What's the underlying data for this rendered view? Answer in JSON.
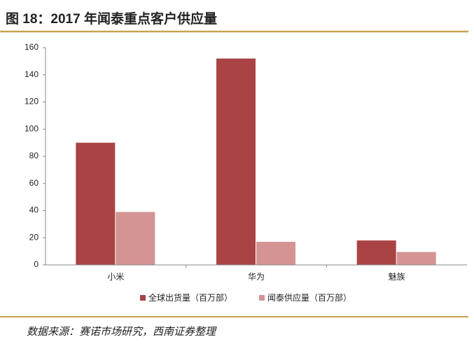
{
  "header": {
    "title": "图 18：2017 年闻泰重点客户供应量"
  },
  "chart_data": {
    "type": "bar",
    "categories": [
      "小米",
      "华为",
      "魅族"
    ],
    "series": [
      {
        "name": "全球出货量（百万部）",
        "color": "#aa4444",
        "values": [
          90,
          152,
          18
        ]
      },
      {
        "name": "闻泰供应量（百万部）",
        "color": "#d49494",
        "values": [
          39,
          17,
          9.5
        ]
      }
    ],
    "ylim": [
      0,
      160
    ],
    "yticks": [
      0,
      20,
      40,
      60,
      80,
      100,
      120,
      140,
      160
    ]
  },
  "footer": {
    "source": "数据来源：赛诺市场研究，西南证券整理"
  }
}
